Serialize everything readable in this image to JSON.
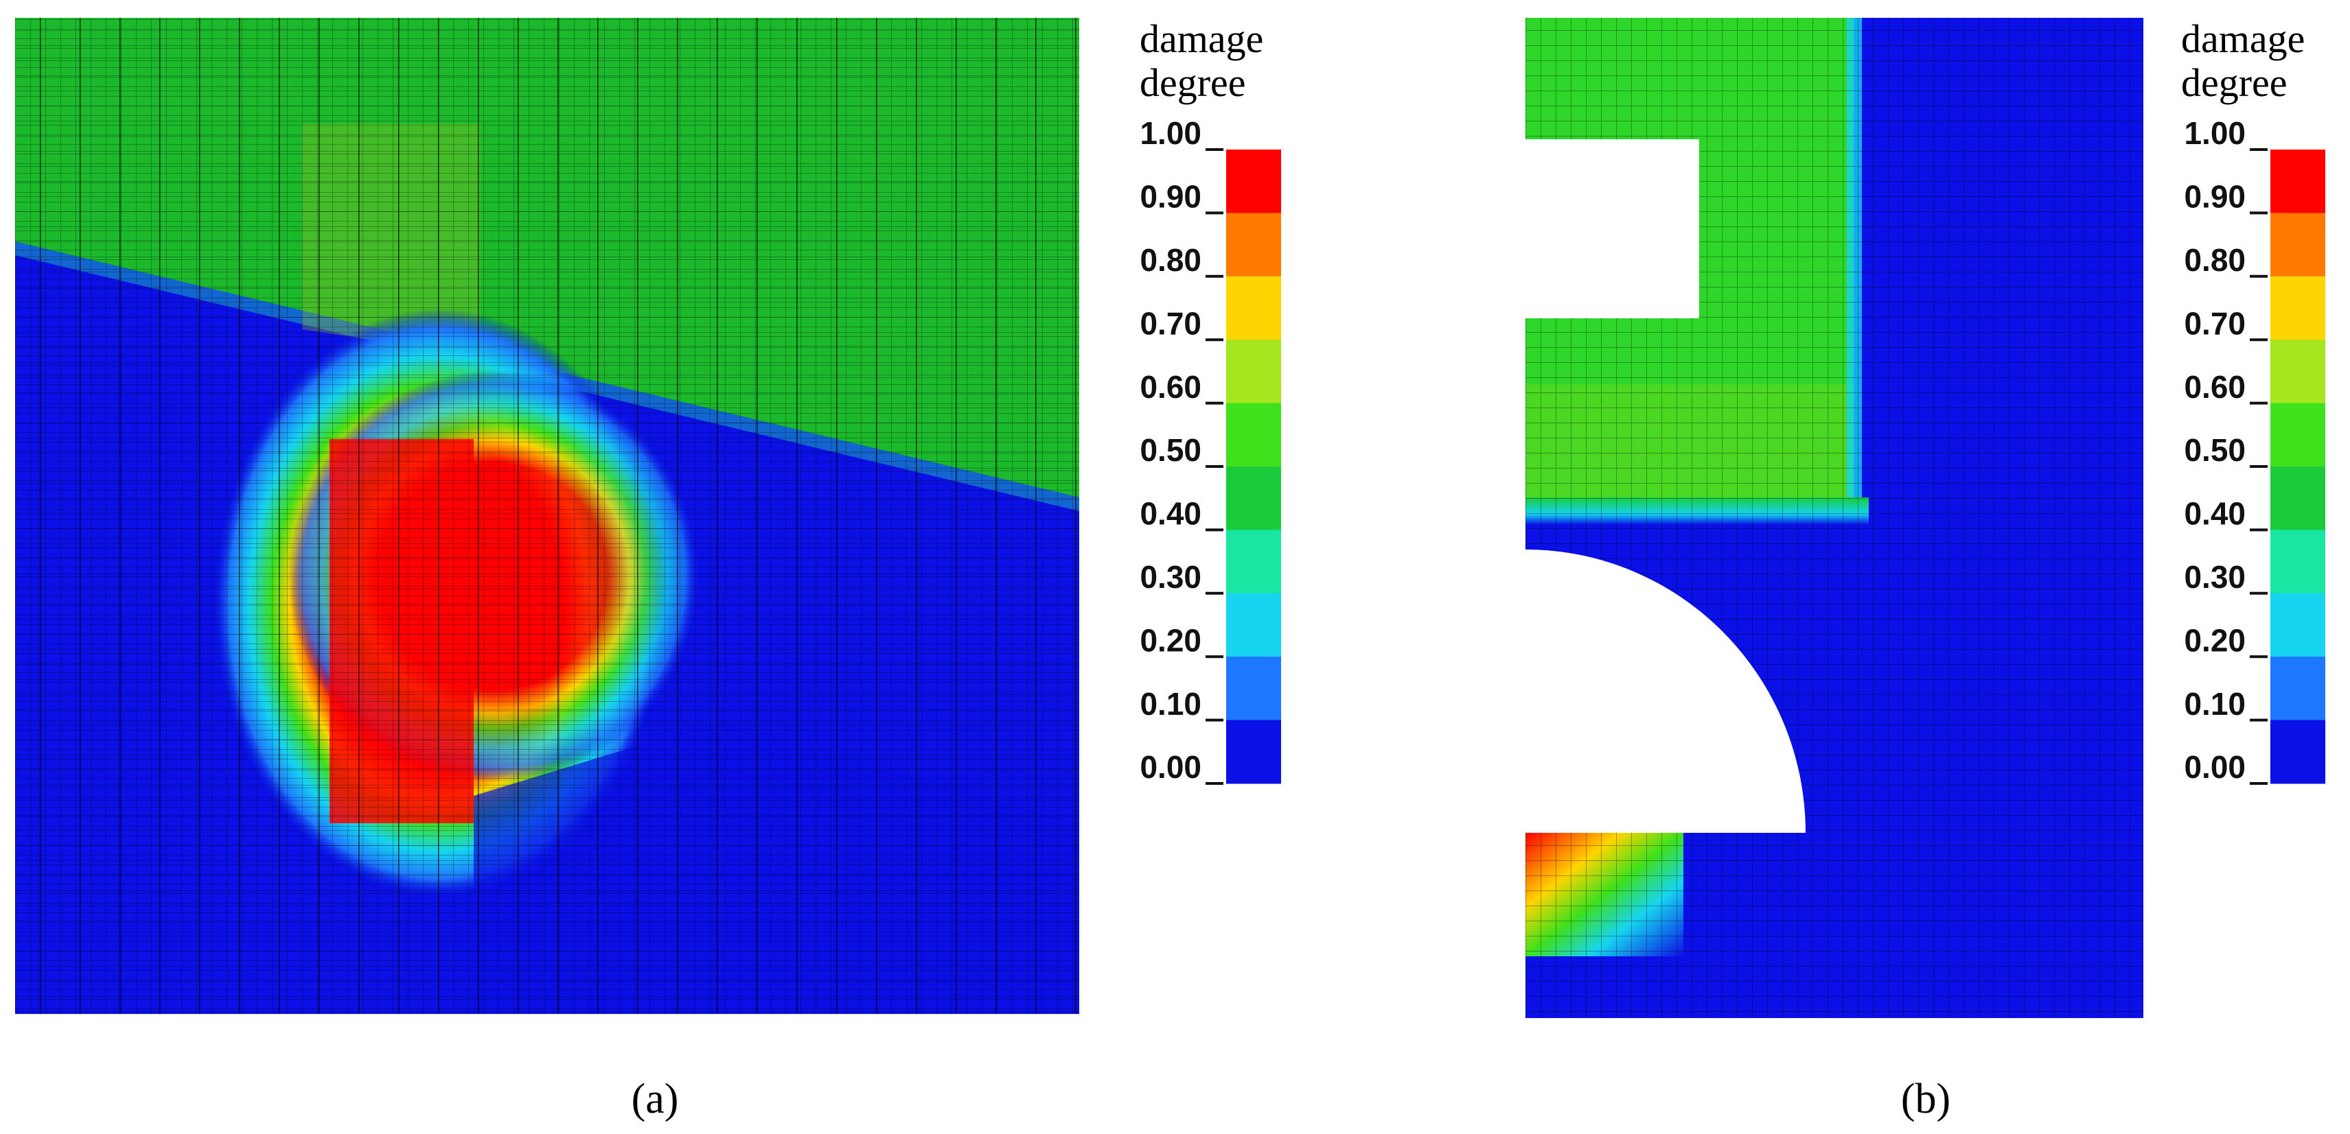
{
  "panels": [
    {
      "legend": {
        "title": [
          "damage",
          "degree"
        ],
        "labels": [
          "1.00",
          "0.90",
          "0.80",
          "0.70",
          "0.60",
          "0.50",
          "0.40",
          "0.30",
          "0.20",
          "0.10",
          "0.00"
        ],
        "colors": [
          "#ff0000",
          "#ff7a00",
          "#ffd500",
          "#a6e61e",
          "#3fe01c",
          "#1acb3c",
          "#18e6a2",
          "#16d4ef",
          "#1e78ff",
          "#0a10e6"
        ]
      },
      "caption": "(a)"
    },
    {
      "legend": {
        "title": [
          "damage",
          "degree"
        ],
        "labels": [
          "1.00",
          "0.90",
          "0.80",
          "0.70",
          "0.60",
          "0.50",
          "0.40",
          "0.30",
          "0.20",
          "0.10",
          "0.00"
        ],
        "colors": [
          "#ff0000",
          "#ff7a00",
          "#ffd500",
          "#a6e61e",
          "#3fe01c",
          "#1acb3c",
          "#18e6a2",
          "#16d4ef",
          "#1e78ff",
          "#0a10e6"
        ]
      },
      "caption": "(b)"
    }
  ]
}
